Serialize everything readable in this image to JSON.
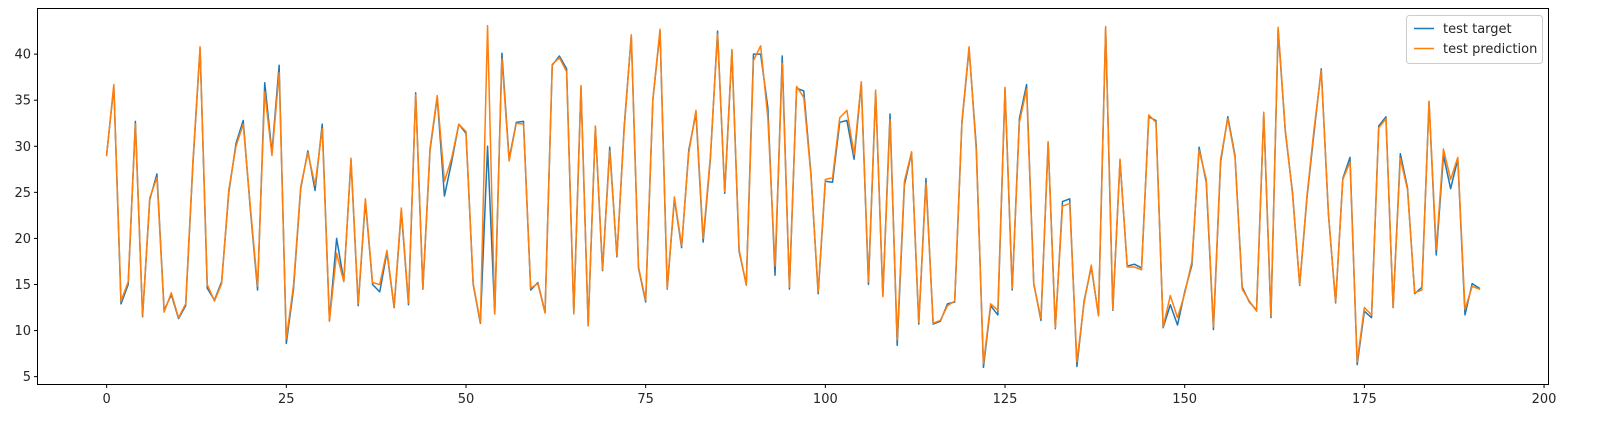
{
  "chart_data": {
    "type": "line",
    "title": "",
    "xlabel": "",
    "ylabel": "",
    "xlim": [
      -9.55,
      200.55
    ],
    "ylim": [
      4.2,
      44.9
    ],
    "x_ticks": [
      0,
      25,
      50,
      75,
      100,
      125,
      150,
      175,
      200
    ],
    "y_ticks": [
      5,
      10,
      15,
      20,
      25,
      30,
      35,
      40
    ],
    "grid": false,
    "legend_position": "top-right",
    "series": [
      {
        "name": "test target",
        "color": "#1f77b4",
        "values": [
          29.1,
          36.5,
          12.9,
          15.0,
          32.7,
          11.5,
          24.2,
          27.0,
          12.2,
          13.9,
          11.3,
          12.7,
          28.0,
          40.6,
          14.6,
          13.3,
          15.3,
          25.0,
          30.3,
          32.8,
          23.1,
          14.4,
          36.9,
          29.3,
          38.8,
          8.6,
          14.5,
          25.4,
          29.5,
          25.2,
          32.4,
          11.1,
          20.0,
          15.4,
          28.5,
          12.7,
          24.1,
          15.0,
          14.2,
          18.5,
          12.5,
          23.0,
          12.8,
          35.8,
          14.5,
          29.6,
          35.3,
          24.6,
          28.3,
          32.4,
          31.4,
          15.0,
          10.8,
          30.0,
          11.8,
          40.1,
          28.6,
          32.6,
          32.7,
          14.4,
          15.2,
          12.0,
          38.8,
          39.8,
          38.4,
          11.9,
          36.4,
          10.6,
          32.1,
          16.5,
          29.9,
          18.0,
          32.0,
          42.0,
          16.8,
          13.1,
          35.0,
          42.5,
          14.5,
          24.3,
          19.0,
          29.6,
          33.6,
          19.6,
          28.6,
          42.5,
          24.9,
          40.3,
          18.6,
          15.0,
          40.0,
          40.0,
          34.2,
          16.0,
          39.8,
          14.5,
          36.3,
          36.0,
          27.0,
          14.0,
          26.2,
          26.1,
          32.6,
          32.8,
          28.6,
          36.8,
          15.0,
          35.9,
          13.8,
          33.5,
          8.4,
          25.8,
          29.3,
          10.7,
          26.5,
          10.7,
          11.0,
          12.9,
          13.1,
          32.5,
          40.6,
          30.0,
          6.0,
          12.7,
          11.7,
          36.2,
          14.4,
          33.0,
          36.7,
          15.1,
          11.1,
          30.4,
          10.2,
          24.0,
          24.3,
          6.1,
          13.2,
          16.9,
          11.7,
          42.8,
          12.2,
          28.4,
          17.0,
          17.2,
          16.8,
          33.2,
          32.8,
          10.3,
          12.8,
          10.6,
          14.2,
          17.1,
          29.9,
          26.1,
          10.1,
          28.3,
          33.2,
          29.0,
          14.7,
          13.1,
          12.2,
          33.5,
          11.4,
          42.7,
          31.6,
          25.0,
          14.9,
          24.3,
          31.5,
          38.4,
          22.6,
          13.0,
          26.5,
          28.8,
          6.3,
          12.1,
          11.4,
          32.2,
          33.2,
          12.5,
          29.2,
          25.5,
          14.0,
          14.7,
          34.8,
          18.2,
          29.0,
          25.4,
          28.6,
          11.7,
          15.1,
          14.6
        ]
      },
      {
        "name": "test prediction",
        "color": "#ff7f0e",
        "values": [
          29.0,
          36.7,
          13.2,
          15.3,
          32.4,
          11.6,
          24.4,
          26.6,
          12.0,
          14.1,
          11.4,
          12.9,
          28.3,
          40.8,
          15.0,
          13.2,
          15.1,
          25.3,
          30.0,
          32.4,
          23.4,
          14.8,
          35.9,
          29.0,
          38.0,
          9.1,
          14.9,
          25.6,
          29.3,
          25.8,
          31.9,
          11.0,
          18.4,
          15.3,
          28.7,
          12.9,
          24.3,
          15.2,
          15.0,
          18.7,
          12.6,
          23.3,
          13.0,
          35.6,
          14.6,
          29.8,
          35.5,
          26.2,
          28.7,
          32.4,
          31.6,
          15.1,
          10.9,
          43.1,
          11.8,
          39.5,
          28.4,
          32.5,
          32.4,
          14.6,
          15.1,
          11.9,
          38.9,
          39.6,
          38.1,
          11.8,
          36.6,
          10.5,
          32.2,
          16.6,
          29.5,
          18.1,
          31.7,
          42.1,
          16.9,
          13.3,
          35.1,
          42.7,
          14.6,
          24.5,
          19.2,
          29.3,
          33.9,
          20.0,
          28.9,
          42.2,
          25.1,
          40.5,
          18.8,
          14.9,
          39.3,
          40.9,
          33.1,
          17.0,
          39.0,
          14.7,
          36.5,
          35.3,
          26.8,
          14.2,
          26.4,
          26.6,
          33.1,
          33.9,
          29.1,
          37.0,
          15.3,
          36.1,
          13.7,
          32.9,
          9.0,
          26.2,
          29.4,
          10.9,
          26.0,
          10.8,
          11.1,
          12.7,
          13.2,
          32.7,
          40.8,
          29.5,
          6.4,
          12.9,
          12.2,
          36.4,
          14.6,
          32.6,
          36.2,
          15.0,
          11.3,
          30.5,
          10.3,
          23.5,
          23.8,
          6.6,
          13.0,
          17.1,
          11.6,
          43.0,
          12.3,
          28.6,
          16.9,
          16.9,
          16.6,
          33.4,
          32.6,
          10.4,
          13.8,
          11.4,
          14.0,
          17.5,
          29.6,
          26.4,
          10.4,
          28.6,
          33.0,
          28.8,
          14.5,
          13.2,
          12.1,
          33.7,
          11.6,
          42.9,
          31.8,
          24.8,
          15.0,
          24.5,
          31.9,
          38.2,
          22.7,
          13.1,
          26.4,
          28.3,
          6.6,
          12.5,
          11.7,
          32.0,
          33.0,
          12.6,
          28.7,
          25.3,
          14.1,
          14.4,
          34.9,
          18.8,
          29.7,
          26.4,
          28.8,
          12.3,
          14.8,
          14.5
        ]
      }
    ]
  }
}
